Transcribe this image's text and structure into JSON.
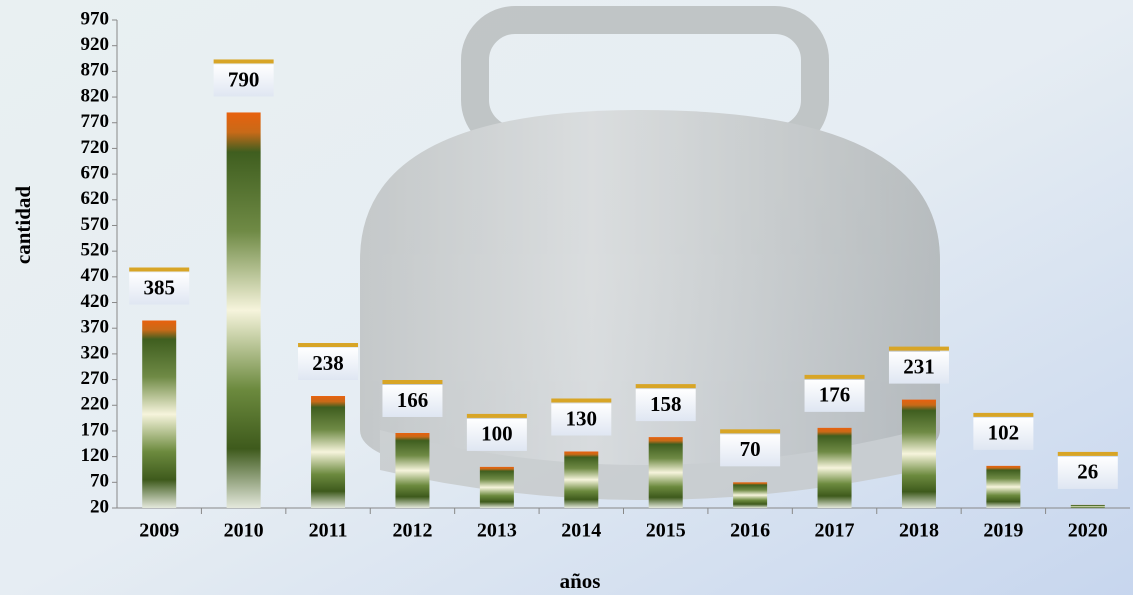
{
  "chart_data": {
    "type": "bar",
    "x_label": "años",
    "y_label": "cantidad",
    "categories": [
      "2009",
      "2010",
      "2011",
      "2012",
      "2013",
      "2014",
      "2015",
      "2016",
      "2017",
      "2018",
      "2019",
      "2020"
    ],
    "values": [
      385,
      790,
      238,
      166,
      100,
      130,
      158,
      70,
      176,
      231,
      102,
      26
    ],
    "ylim": [
      20,
      970
    ],
    "yticks": [
      20,
      70,
      120,
      170,
      220,
      270,
      320,
      370,
      420,
      470,
      520,
      570,
      620,
      670,
      720,
      770,
      820,
      870,
      920,
      970
    ],
    "grid": false
  }
}
